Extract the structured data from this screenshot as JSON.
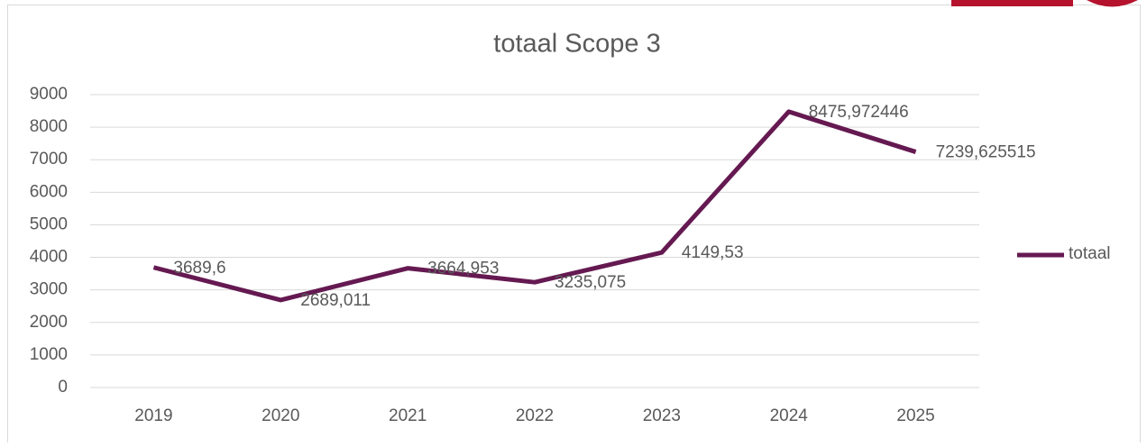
{
  "chart_data": {
    "type": "line",
    "title": "totaal Scope 3",
    "categories": [
      "2019",
      "2020",
      "2021",
      "2022",
      "2023",
      "2024",
      "2025"
    ],
    "series": [
      {
        "name": "totaal",
        "color": "#651951",
        "values": [
          3689.6,
          2689.011,
          3664.953,
          3235.075,
          4149.53,
          8475.972446,
          7239.625515
        ],
        "value_labels": [
          "3689,6",
          "2689,011",
          "3664,953",
          "3235,075",
          "4149,53",
          "8475,972446",
          "7239,625515"
        ]
      }
    ],
    "ylim": [
      0,
      9000
    ],
    "yticks": [
      0,
      1000,
      2000,
      3000,
      4000,
      5000,
      6000,
      7000,
      8000,
      9000
    ],
    "grid": true,
    "legend": "right"
  }
}
